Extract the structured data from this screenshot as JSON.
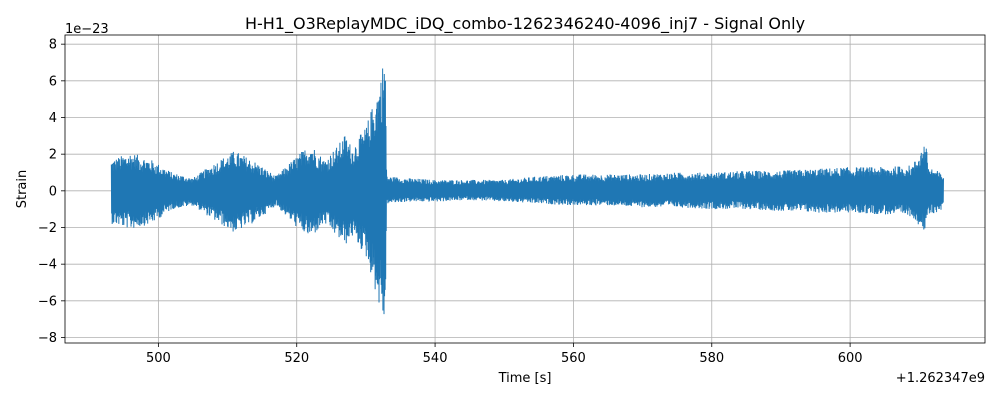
{
  "chart_data": {
    "type": "line",
    "title": "H-H1_O3ReplayMDC_iDQ_combo-1262346240-4096_inj7 - Signal Only",
    "xlabel": "Time [s]",
    "ylabel": "Strain",
    "x_offset_label": "+1.262347e9",
    "y_scale_label": "1e−23",
    "xlim": [
      486.5,
      619.5
    ],
    "ylim": [
      -8.3,
      8.5
    ],
    "x_ticks": [
      500,
      520,
      540,
      560,
      580,
      600
    ],
    "x_tick_labels": [
      "500",
      "520",
      "540",
      "560",
      "580",
      "600"
    ],
    "y_ticks": [
      -8,
      -6,
      -4,
      -2,
      0,
      2,
      4,
      6,
      8
    ],
    "y_tick_labels": [
      "−8",
      "−6",
      "−4",
      "−2",
      "0",
      "2",
      "4",
      "6",
      "8"
    ],
    "grid": true,
    "color": "#1f77b4",
    "series": [
      {
        "x": [
          493.2,
          496,
          499,
          502,
          505,
          508,
          511,
          514,
          517,
          520,
          522,
          524,
          526,
          527,
          528,
          530,
          531,
          532,
          532.8,
          533,
          536,
          540,
          545,
          550,
          555,
          560,
          565,
          570,
          575,
          580,
          585,
          590,
          595,
          600,
          605,
          609,
          611,
          611.2,
          613.5
        ],
        "envelope": [
          1.7,
          2.1,
          1.7,
          1.0,
          0.7,
          1.5,
          2.2,
          1.6,
          0.8,
          1.9,
          2.6,
          1.7,
          2.5,
          3.1,
          2.4,
          3.5,
          4.7,
          6.0,
          7.8,
          0.8,
          0.7,
          0.6,
          0.6,
          0.6,
          0.8,
          0.9,
          0.9,
          0.9,
          1.0,
          1.0,
          1.1,
          1.1,
          1.2,
          1.3,
          1.3,
          1.4,
          2.8,
          1.4,
          0.9
        ],
        "lower_envelope": [
          -1.8,
          -2.1,
          -1.8,
          -1.0,
          -0.8,
          -1.6,
          -2.3,
          -1.7,
          -0.8,
          -2.0,
          -2.6,
          -1.8,
          -2.6,
          -3.0,
          -2.5,
          -3.6,
          -4.9,
          -6.5,
          -7.4,
          -0.7,
          -0.6,
          -0.6,
          -0.5,
          -0.6,
          -0.7,
          -0.8,
          -0.8,
          -0.9,
          -0.9,
          -1.0,
          -1.0,
          -1.1,
          -1.2,
          -1.2,
          -1.3,
          -1.4,
          -2.4,
          -1.4,
          -1.0
        ]
      }
    ]
  }
}
